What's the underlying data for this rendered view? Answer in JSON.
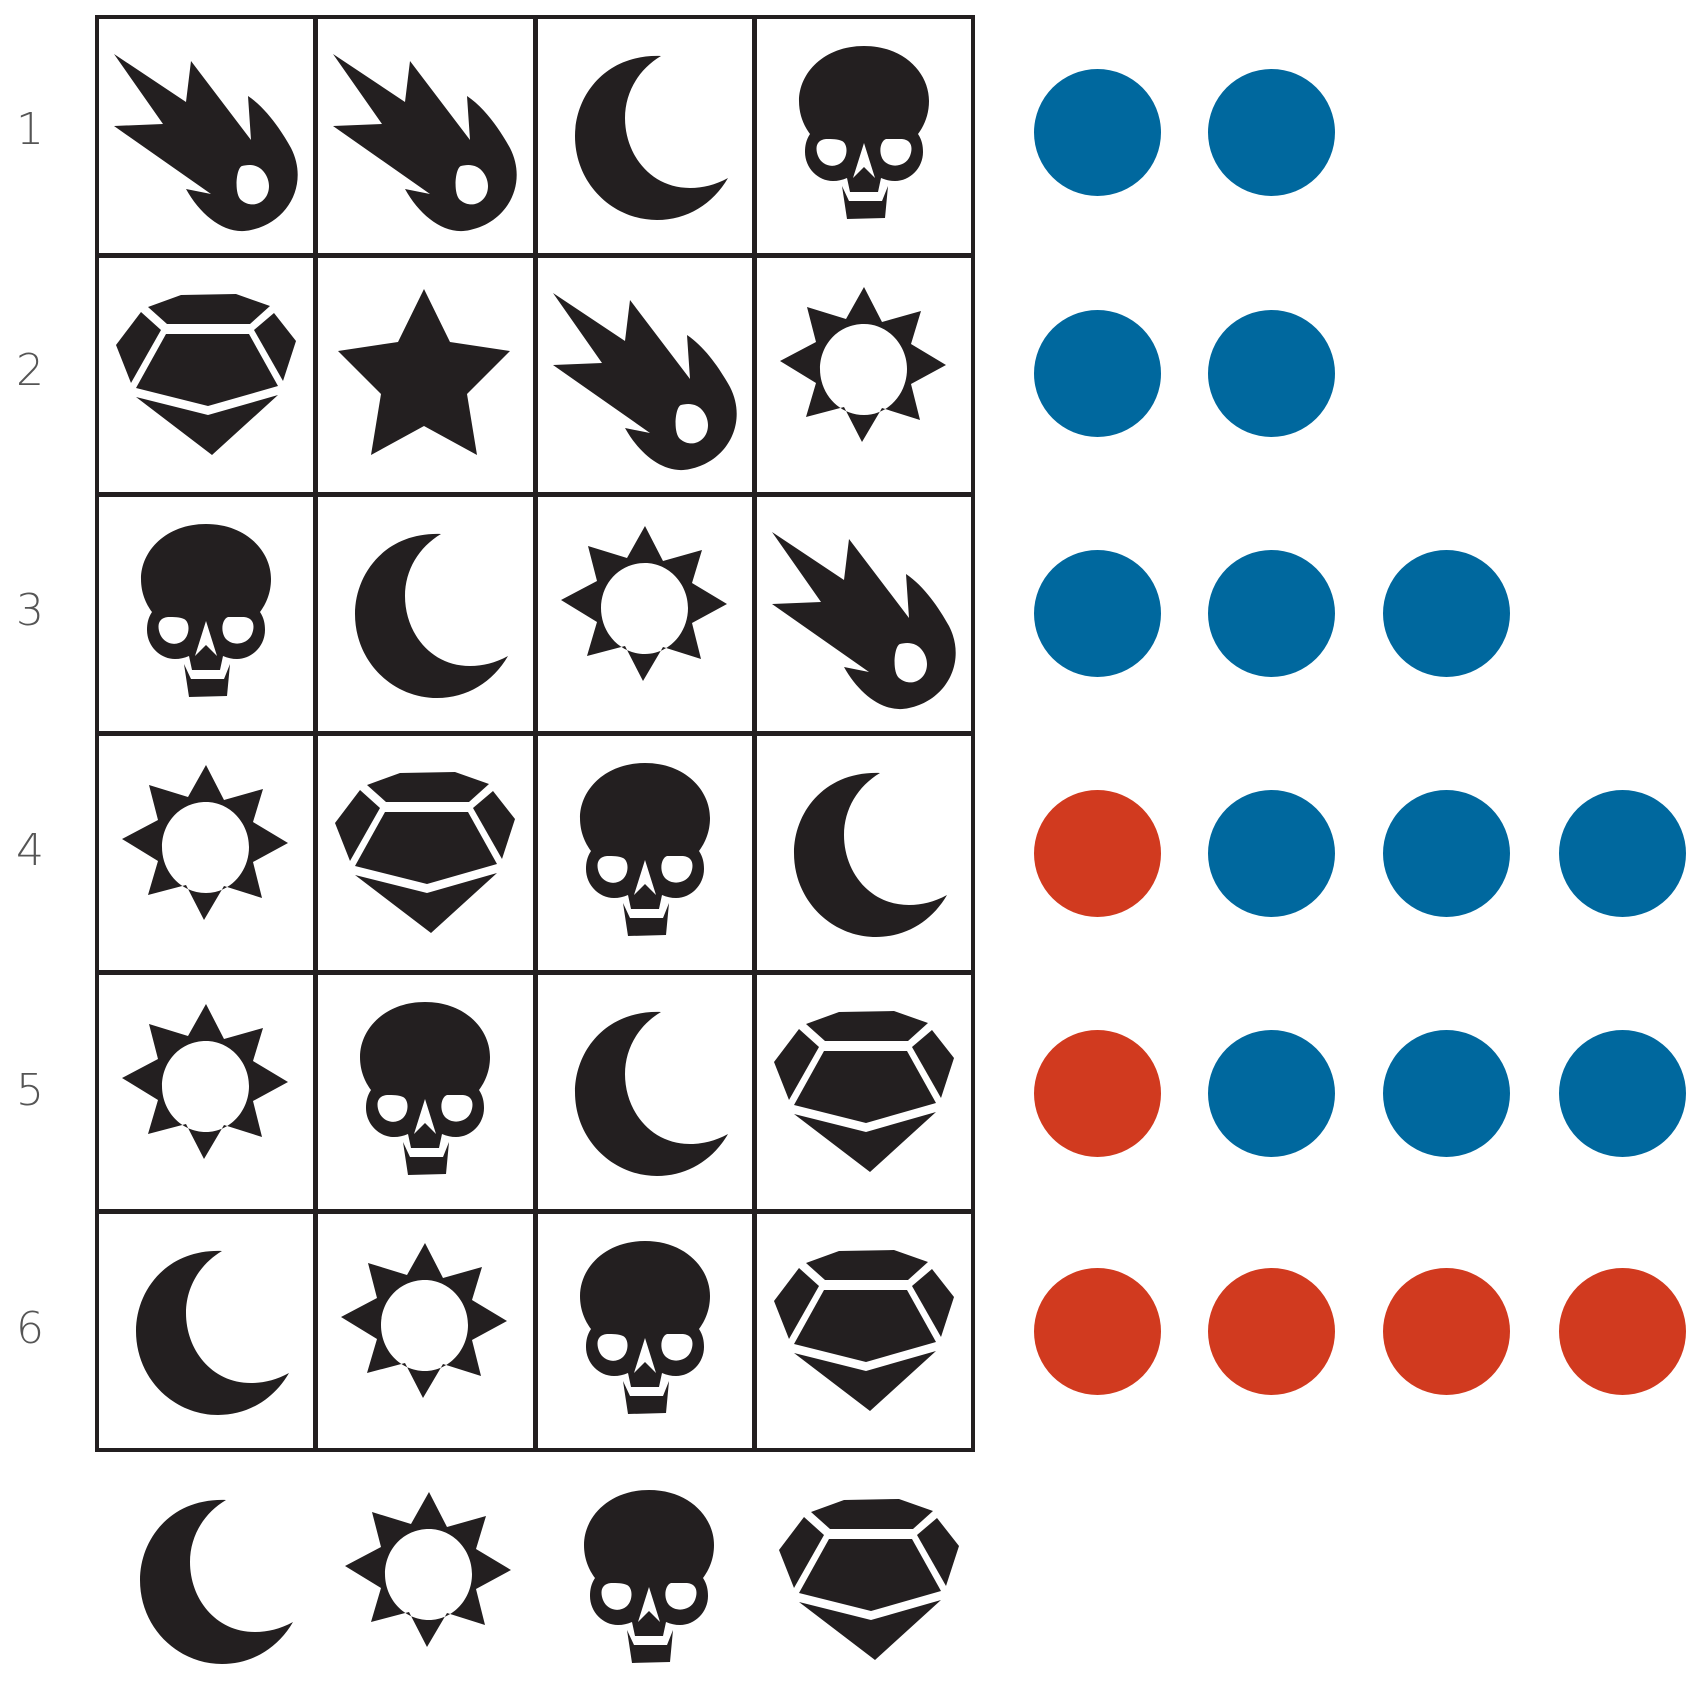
{
  "colors": {
    "icon": "#231f20",
    "peg_blue": "#00689e",
    "peg_red": "#d13a1f"
  },
  "rows": [
    {
      "label": "1",
      "guess": [
        "comet-icon",
        "comet-icon",
        "moon-icon",
        "skull-icon"
      ],
      "pegs": [
        "blue",
        "blue"
      ]
    },
    {
      "label": "2",
      "guess": [
        "gem-icon",
        "star-icon",
        "comet-icon",
        "sun-icon"
      ],
      "pegs": [
        "blue",
        "blue"
      ]
    },
    {
      "label": "3",
      "guess": [
        "skull-icon",
        "moon-icon",
        "sun-icon",
        "comet-icon"
      ],
      "pegs": [
        "blue",
        "blue",
        "blue"
      ]
    },
    {
      "label": "4",
      "guess": [
        "sun-icon",
        "gem-icon",
        "skull-icon",
        "moon-icon"
      ],
      "pegs": [
        "red",
        "blue",
        "blue",
        "blue"
      ]
    },
    {
      "label": "5",
      "guess": [
        "sun-icon",
        "skull-icon",
        "moon-icon",
        "gem-icon"
      ],
      "pegs": [
        "red",
        "blue",
        "blue",
        "blue"
      ]
    },
    {
      "label": "6",
      "guess": [
        "moon-icon",
        "sun-icon",
        "skull-icon",
        "gem-icon"
      ],
      "pegs": [
        "red",
        "red",
        "red",
        "red"
      ]
    }
  ],
  "answer": [
    "moon-icon",
    "sun-icon",
    "skull-icon",
    "gem-icon"
  ]
}
